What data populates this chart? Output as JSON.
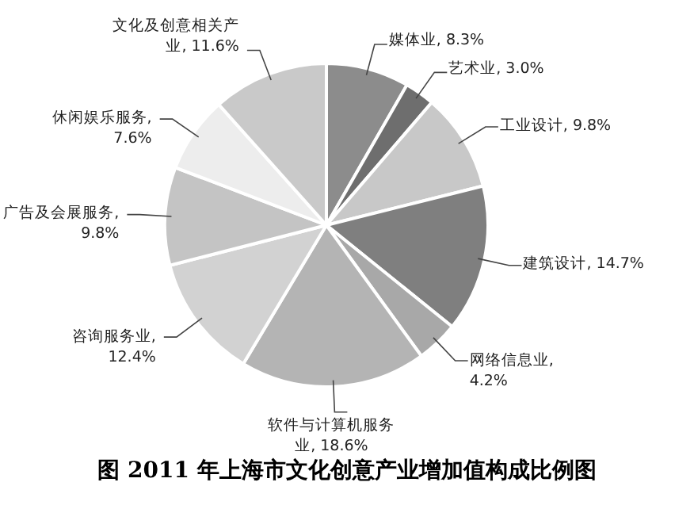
{
  "chart_data": {
    "type": "pie",
    "title": "图  2011 年上海市文化创意产业增加值构成比例图",
    "categories": [
      "媒体业, 8.3%",
      "艺术业, 3.0%",
      "工业设计, 9.8%",
      "建筑设计, 14.7%",
      "网络信息业, 4.2%",
      "软件与计算机服务业, 18.6%",
      "咨询服务业, 12.4%",
      "广告及会展服务, 9.8%",
      "休闲娱乐服务, 7.6%",
      "文化及创意相关产业, 11.6%"
    ],
    "values": [
      8.3,
      3.0,
      9.8,
      14.7,
      4.2,
      18.6,
      12.4,
      9.8,
      7.6,
      11.6
    ],
    "colors": [
      "#8c8c8c",
      "#6e6e6e",
      "#c8c8c8",
      "#7f7f7f",
      "#a8a8a8",
      "#b4b4b4",
      "#d2d2d2",
      "#c4c4c4",
      "#ededed",
      "#c9c9c9"
    ]
  }
}
